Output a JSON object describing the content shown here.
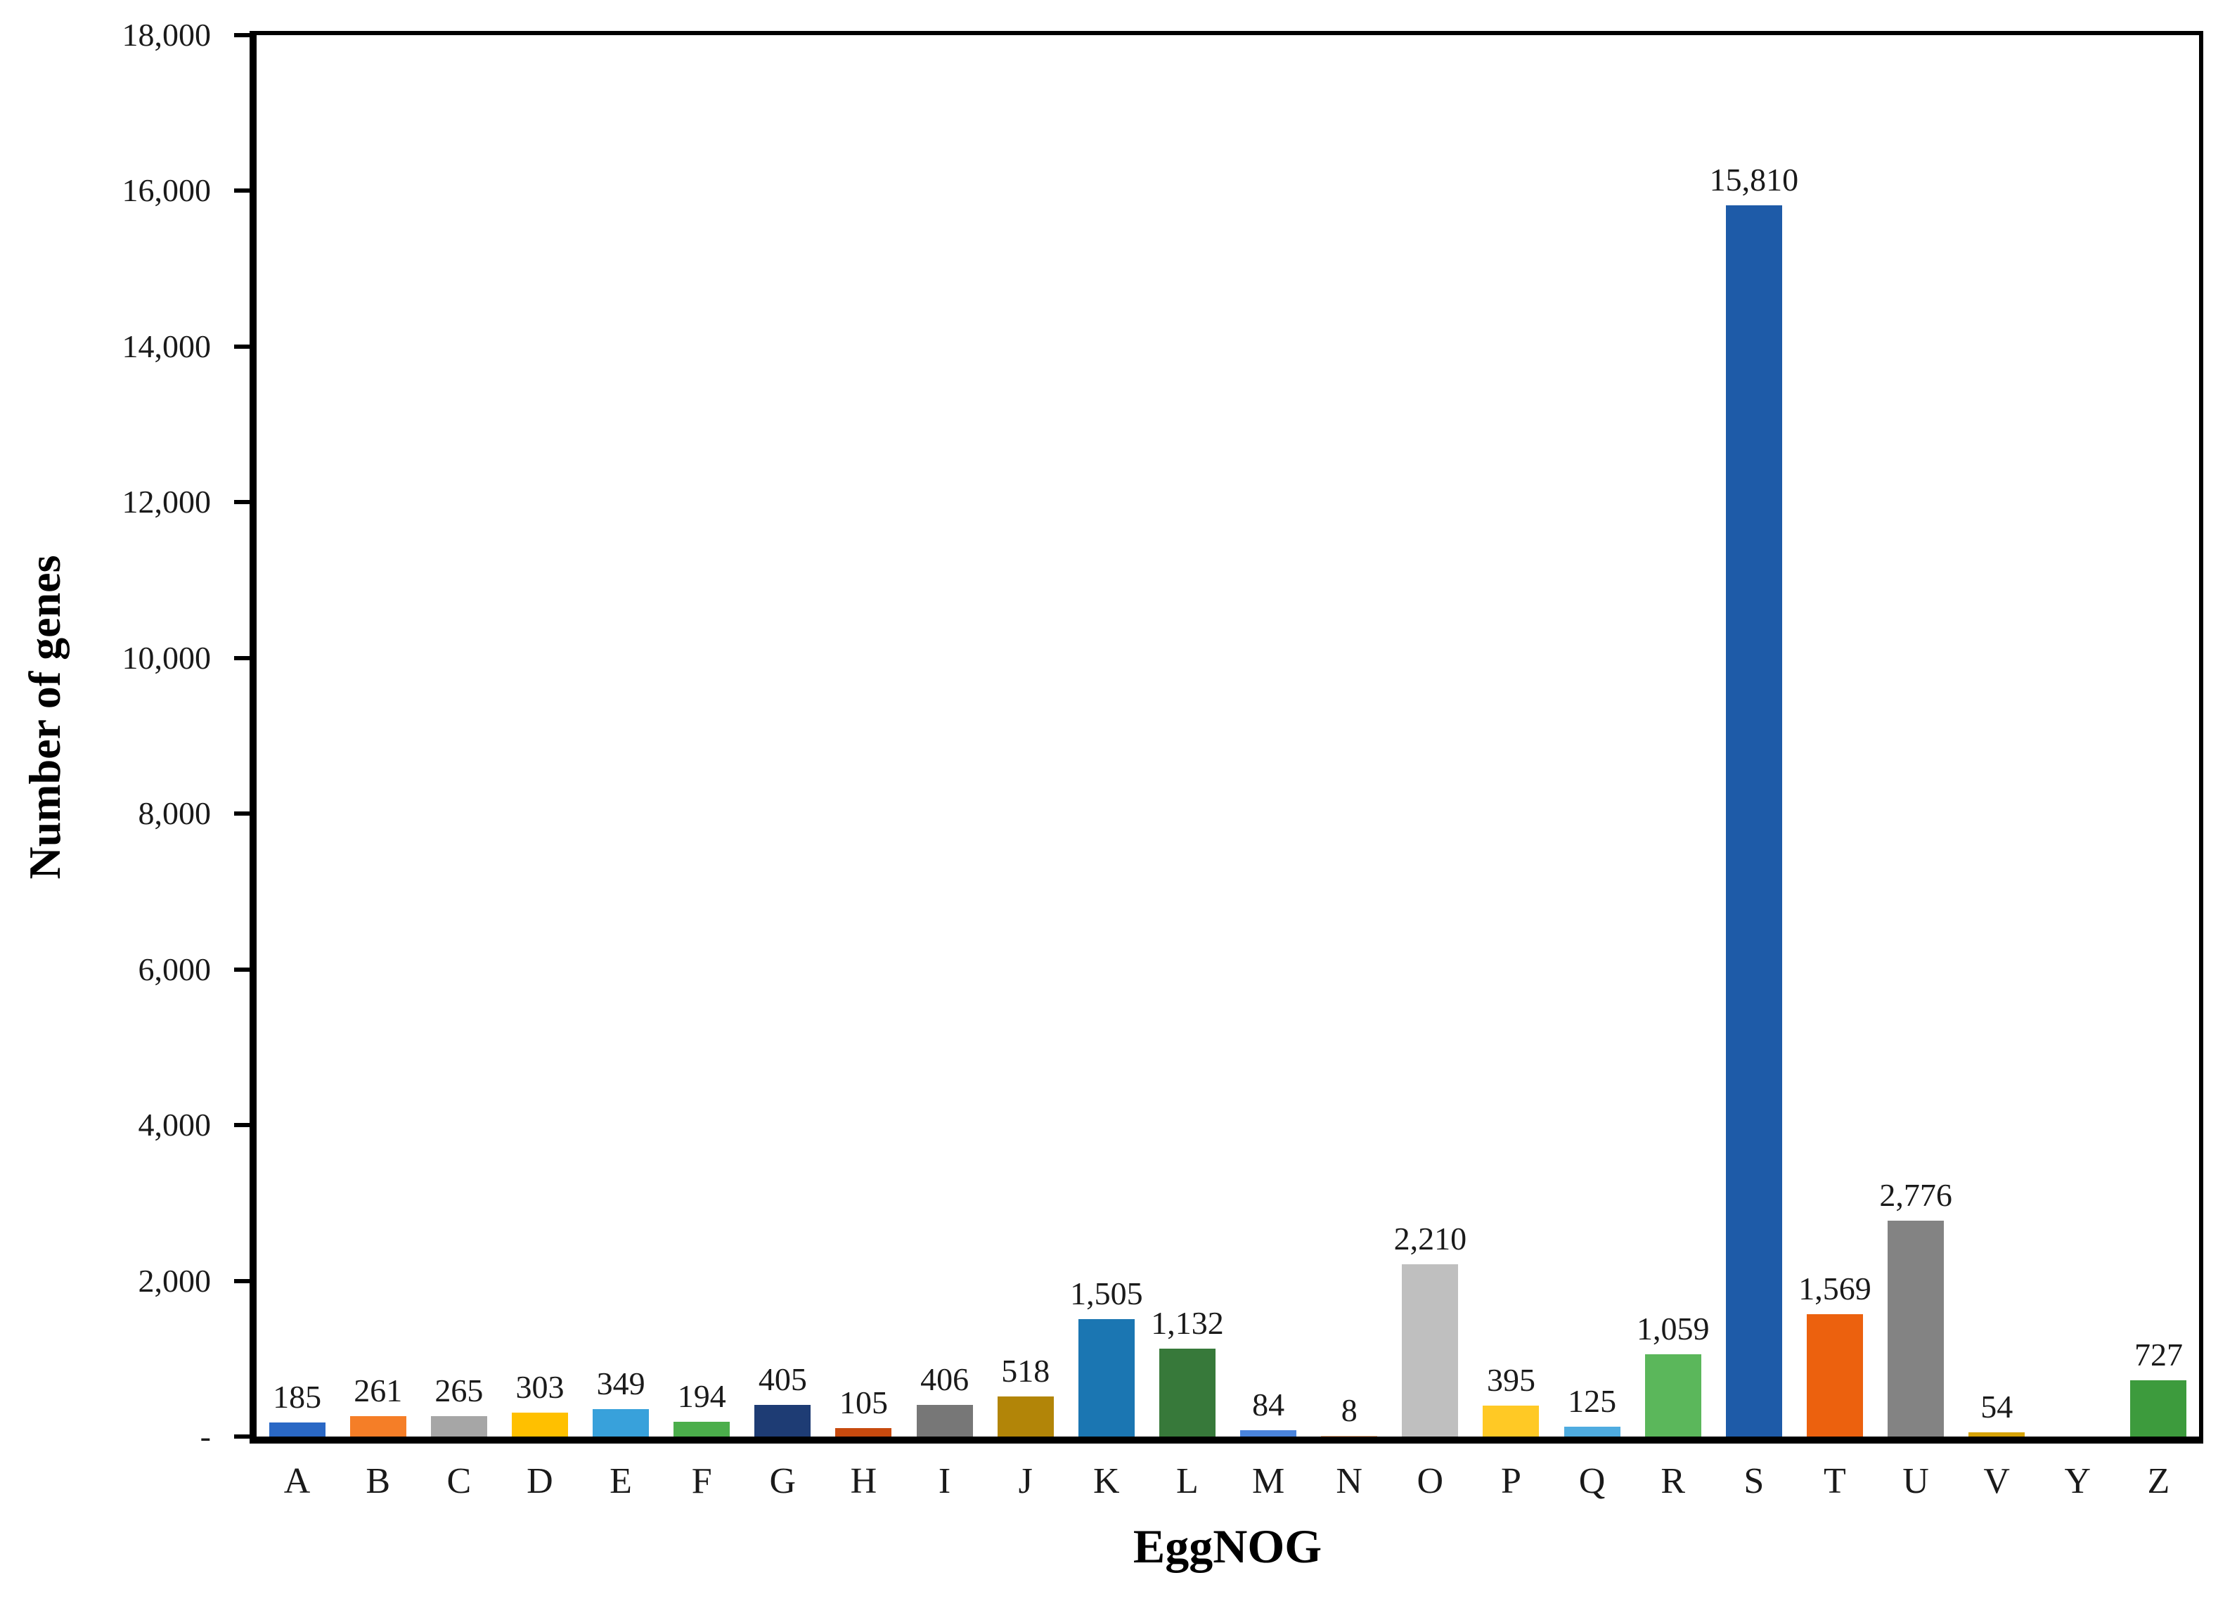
{
  "chart_data": {
    "type": "bar",
    "title": "",
    "xlabel": "EggNOG",
    "ylabel": "Number of genes",
    "ylim": [
      0,
      18000
    ],
    "grid": false,
    "legend": "none",
    "yticks": [
      {
        "value": 18000,
        "label": "18,000"
      },
      {
        "value": 16000,
        "label": "16,000"
      },
      {
        "value": 14000,
        "label": "14,000"
      },
      {
        "value": 12000,
        "label": "12,000"
      },
      {
        "value": 10000,
        "label": "10,000"
      },
      {
        "value": 8000,
        "label": "8,000"
      },
      {
        "value": 6000,
        "label": "6,000"
      },
      {
        "value": 4000,
        "label": "4,000"
      },
      {
        "value": 2000,
        "label": "2,000"
      },
      {
        "value": 0,
        "label": "-"
      }
    ],
    "categories": [
      "A",
      "B",
      "C",
      "D",
      "E",
      "F",
      "G",
      "H",
      "I",
      "J",
      "K",
      "L",
      "M",
      "N",
      "O",
      "P",
      "Q",
      "R",
      "S",
      "T",
      "U",
      "V",
      "Y",
      "Z"
    ],
    "bars": [
      {
        "category": "A",
        "value": 185,
        "label": "185",
        "color": "#2A68C5"
      },
      {
        "category": "B",
        "value": 261,
        "label": "261",
        "color": "#F57E27"
      },
      {
        "category": "C",
        "value": 265,
        "label": "265",
        "color": "#A6A6A6"
      },
      {
        "category": "D",
        "value": 303,
        "label": "303",
        "color": "#FFC000"
      },
      {
        "category": "E",
        "value": 349,
        "label": "349",
        "color": "#38A1DB"
      },
      {
        "category": "F",
        "value": 194,
        "label": "194",
        "color": "#4BAE4B"
      },
      {
        "category": "G",
        "value": 405,
        "label": "405",
        "color": "#1E3C74"
      },
      {
        "category": "H",
        "value": 105,
        "label": "105",
        "color": "#C74A0E"
      },
      {
        "category": "I",
        "value": 406,
        "label": "406",
        "color": "#777777"
      },
      {
        "category": "J",
        "value": 518,
        "label": "518",
        "color": "#B28508"
      },
      {
        "category": "K",
        "value": 1505,
        "label": "1,505",
        "color": "#1B76B2"
      },
      {
        "category": "L",
        "value": 1132,
        "label": "1,132",
        "color": "#37793A"
      },
      {
        "category": "M",
        "value": 84,
        "label": "84",
        "color": "#4A84DC"
      },
      {
        "category": "N",
        "value": 8,
        "label": "8",
        "color": "#F4B183"
      },
      {
        "category": "O",
        "value": 2210,
        "label": "2,210",
        "color": "#BFBFBF"
      },
      {
        "category": "P",
        "value": 395,
        "label": "395",
        "color": "#FFC925"
      },
      {
        "category": "Q",
        "value": 125,
        "label": "125",
        "color": "#4FACE0"
      },
      {
        "category": "R",
        "value": 1059,
        "label": "1,059",
        "color": "#5BB75B"
      },
      {
        "category": "S",
        "value": 15810,
        "label": "15,810",
        "color": "#1E5BA8"
      },
      {
        "category": "T",
        "value": 1569,
        "label": "1,569",
        "color": "#EC610E"
      },
      {
        "category": "U",
        "value": 2776,
        "label": "2,776",
        "color": "#838383"
      },
      {
        "category": "V",
        "value": 54,
        "label": "54",
        "color": "#D6A307"
      },
      {
        "category": "Y",
        "value": 0,
        "label": "",
        "color": "#3D9B3D"
      },
      {
        "category": "Z",
        "value": 727,
        "label": "727",
        "color": "#3D9B3D"
      }
    ]
  }
}
